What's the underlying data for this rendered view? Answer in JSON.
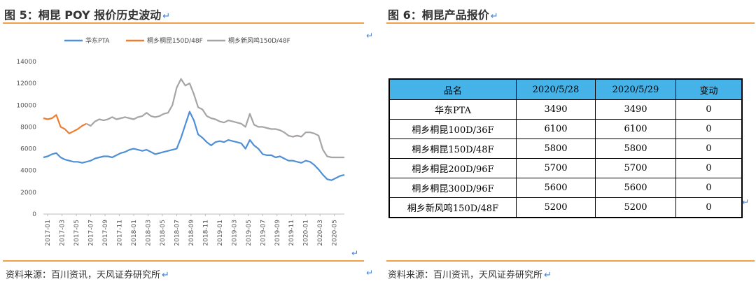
{
  "left": {
    "title": "图 5：桐昆 POY 报价历史波动",
    "source": "资料来源：百川资讯，天风证券研究所"
  },
  "right": {
    "title": "图 6：桐昆产品报价",
    "source": "资料来源：百川资讯，天风证券研究所",
    "table": {
      "headers": [
        "品名",
        "2020/5/28",
        "2020/5/29",
        "变动"
      ],
      "rows": [
        [
          "华东PTA",
          "3490",
          "3490",
          "0"
        ],
        [
          "桐乡桐昆100D/36F",
          "6100",
          "6100",
          "0"
        ],
        [
          "桐乡桐昆150D/48F",
          "5800",
          "5800",
          "0"
        ],
        [
          "桐乡桐昆200D/96F",
          "5700",
          "5700",
          "0"
        ],
        [
          "桐乡桐昆300D/96F",
          "5600",
          "5600",
          "0"
        ],
        [
          "桐乡新风鸣150D/48F",
          "5200",
          "5200",
          "0"
        ]
      ]
    }
  },
  "chart_data": {
    "type": "line",
    "ylim": [
      0,
      14000
    ],
    "yticks": [
      "0",
      "2000",
      "4000",
      "6000",
      "8000",
      "10000",
      "12000",
      "14000"
    ],
    "xticks": [
      "2017-01",
      "2017-03",
      "2017-05",
      "2017-07",
      "2017-09",
      "2017-11",
      "2018-01",
      "2018-03",
      "2018-05",
      "2018-07",
      "2018-09",
      "2018-11",
      "2019-01",
      "2019-03",
      "2019-05",
      "2019-07",
      "2019-09",
      "2019-11",
      "2020-01",
      "2020-03",
      "2020-05"
    ],
    "legend_position": "top",
    "series": [
      {
        "name": "华东PTA",
        "color": "#4f8fd6",
        "values": [
          5200,
          5300,
          5500,
          5600,
          5200,
          5000,
          4900,
          4800,
          4800,
          4700,
          4800,
          4900,
          5100,
          5200,
          5300,
          5300,
          5200,
          5400,
          5600,
          5700,
          5900,
          6000,
          5900,
          5800,
          5900,
          5700,
          5500,
          5600,
          5700,
          5800,
          5900,
          6000,
          7000,
          8200,
          9400,
          8600,
          7300,
          7000,
          6600,
          6300,
          6600,
          6700,
          6600,
          6800,
          6700,
          6600,
          6500,
          6000,
          6800,
          6300,
          6000,
          5500,
          5400,
          5400,
          5200,
          5300,
          5100,
          4900,
          4900,
          4800,
          4700,
          4900,
          4800,
          4500,
          4100,
          3600,
          3200,
          3100,
          3300,
          3500,
          3600
        ]
      },
      {
        "name": "桐乡桐昆150D/48F",
        "color": "#ed7d31",
        "values": [
          8800,
          8700,
          8800,
          9100,
          8000,
          7800,
          7400,
          7600,
          7800,
          8100,
          8300,
          null,
          null,
          null,
          null,
          null,
          null,
          null,
          null,
          null,
          null,
          null,
          null,
          null,
          null,
          null,
          null,
          null,
          null,
          null,
          null,
          null,
          null,
          null,
          null,
          null,
          null,
          null,
          null,
          null,
          null,
          null,
          null,
          null,
          null,
          null,
          null,
          null,
          null,
          null,
          null,
          null,
          null,
          null,
          null,
          null,
          null,
          null,
          7100,
          7200,
          7100,
          null,
          null,
          null,
          null,
          null,
          null,
          null,
          null,
          null,
          null
        ]
      },
      {
        "name": "桐乡新风鸣150D/48F",
        "color": "#a5a5a5",
        "values": [
          null,
          null,
          null,
          null,
          null,
          null,
          null,
          null,
          null,
          null,
          8300,
          8100,
          8500,
          8700,
          8600,
          8700,
          8900,
          8700,
          8800,
          8900,
          8800,
          8700,
          8900,
          9000,
          9300,
          9000,
          8900,
          9000,
          9200,
          9300,
          10000,
          11600,
          12400,
          11800,
          12000,
          11000,
          9800,
          9600,
          9000,
          8800,
          8700,
          8500,
          8400,
          8600,
          8500,
          8400,
          8300,
          8000,
          9200,
          8200,
          8000,
          8000,
          7900,
          7800,
          7800,
          7700,
          7500,
          7200,
          7100,
          7200,
          7100,
          7500,
          7500,
          7400,
          7200,
          5900,
          5300,
          5200,
          5200,
          5200,
          5200
        ]
      }
    ]
  }
}
